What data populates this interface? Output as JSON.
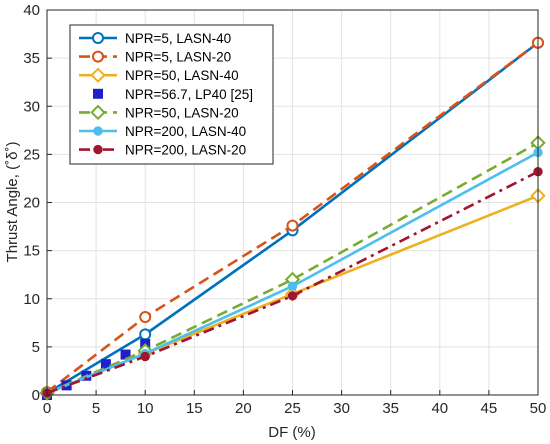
{
  "chart_data": {
    "type": "line",
    "xlabel": "DF (%)",
    "ylabel": "Thrust Angle, (˚δ˚)",
    "xlim": [
      0,
      50
    ],
    "ylim": [
      0,
      40
    ],
    "xticks": [
      "0",
      "5",
      "10",
      "15",
      "20",
      "25",
      "30",
      "35",
      "40",
      "45",
      "50"
    ],
    "yticks": [
      "0",
      "5",
      "10",
      "15",
      "20",
      "25",
      "30",
      "35",
      "40"
    ],
    "grid": true,
    "legend_position": "top-left",
    "series": [
      {
        "name": "NPR=5, LASN-40",
        "color": "#0072BD",
        "style": "solid",
        "marker": "circle-open",
        "x": [
          0,
          10,
          25,
          50
        ],
        "y": [
          0.2,
          6.3,
          17.1,
          36.6
        ]
      },
      {
        "name": "NPR=5, LASN-20",
        "color": "#D95319",
        "style": "dashed",
        "marker": "circle-open",
        "x": [
          0,
          10,
          25,
          50
        ],
        "y": [
          0.3,
          8.1,
          17.6,
          36.6
        ]
      },
      {
        "name": "NPR=50, LASN-40",
        "color": "#EDB120",
        "style": "solid",
        "marker": "diamond-open",
        "x": [
          0,
          10,
          25,
          50
        ],
        "y": [
          0.2,
          4.3,
          10.5,
          20.7
        ]
      },
      {
        "name": "NPR=56.7, LP40 [25]",
        "color": "#1F1FCC",
        "style": "none",
        "marker": "square-filled",
        "x": [
          0,
          2,
          4,
          6,
          8,
          10
        ],
        "y": [
          0,
          1.0,
          2.0,
          3.2,
          4.2,
          5.3
        ]
      },
      {
        "name": "NPR=50, LASN-20",
        "color": "#77AC30",
        "style": "dashed",
        "marker": "diamond-open",
        "x": [
          0,
          10,
          25,
          50
        ],
        "y": [
          0.2,
          4.6,
          12.0,
          26.2
        ]
      },
      {
        "name": "NPR=200, LASN-40",
        "color": "#4DBEEE",
        "style": "solid",
        "marker": "circle-filled",
        "x": [
          0,
          10,
          25,
          50
        ],
        "y": [
          0.2,
          4.3,
          11.3,
          25.2
        ]
      },
      {
        "name": "NPR=200, LASN-20",
        "color": "#A2142F",
        "style": "dashdot",
        "marker": "circle-filled",
        "x": [
          0,
          10,
          25,
          50
        ],
        "y": [
          0.2,
          4.0,
          10.3,
          23.2
        ]
      }
    ]
  }
}
